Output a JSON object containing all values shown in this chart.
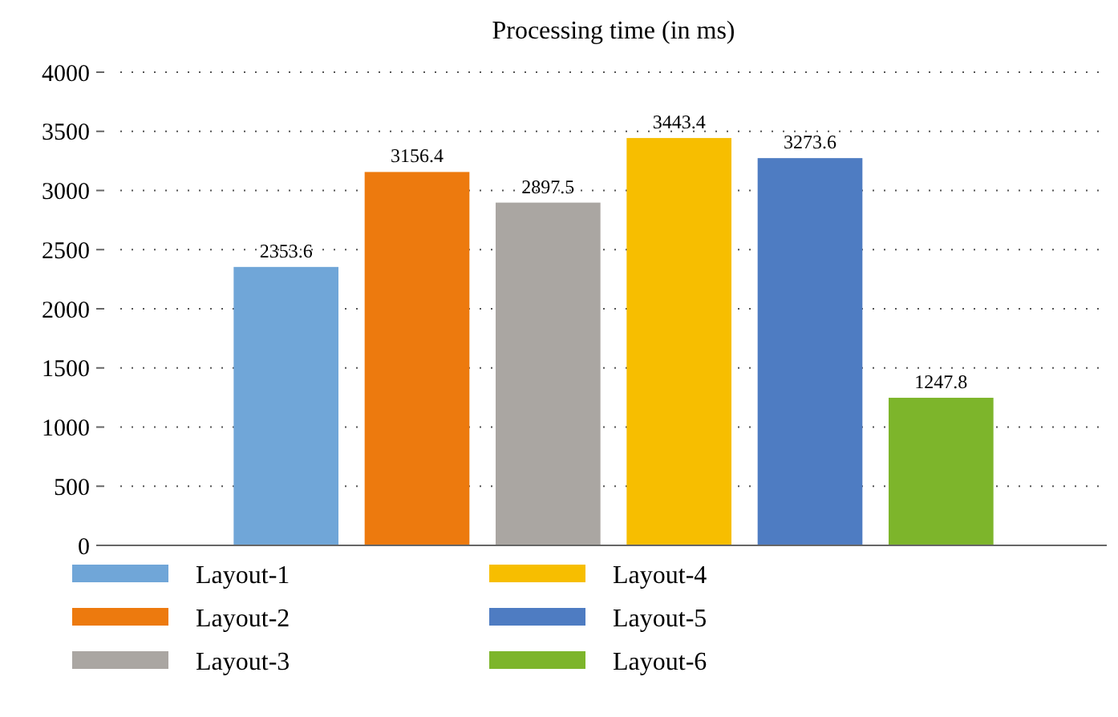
{
  "chart_data": {
    "type": "bar",
    "title": "Processing time (in ms)",
    "categories": [
      null
    ],
    "series": [
      {
        "name": "Layout-1",
        "color": "#70a6d8",
        "values": [
          2353.6
        ]
      },
      {
        "name": "Layout-2",
        "color": "#ed7a0e",
        "values": [
          3156.4
        ]
      },
      {
        "name": "Layout-3",
        "color": "#aaa6a2",
        "values": [
          2897.5
        ]
      },
      {
        "name": "Layout-4",
        "color": "#f7be00",
        "values": [
          3443.4
        ]
      },
      {
        "name": "Layout-5",
        "color": "#4e7cc2",
        "values": [
          3273.6
        ]
      },
      {
        "name": "Layout-6",
        "color": "#7db52b",
        "values": [
          1247.8
        ]
      }
    ],
    "ylim": [
      0,
      4000
    ],
    "yticks": [
      0,
      500,
      1000,
      1500,
      2000,
      2500,
      3000,
      3500,
      4000
    ],
    "grid": "y",
    "data_labels": true,
    "legend": "bottom"
  }
}
